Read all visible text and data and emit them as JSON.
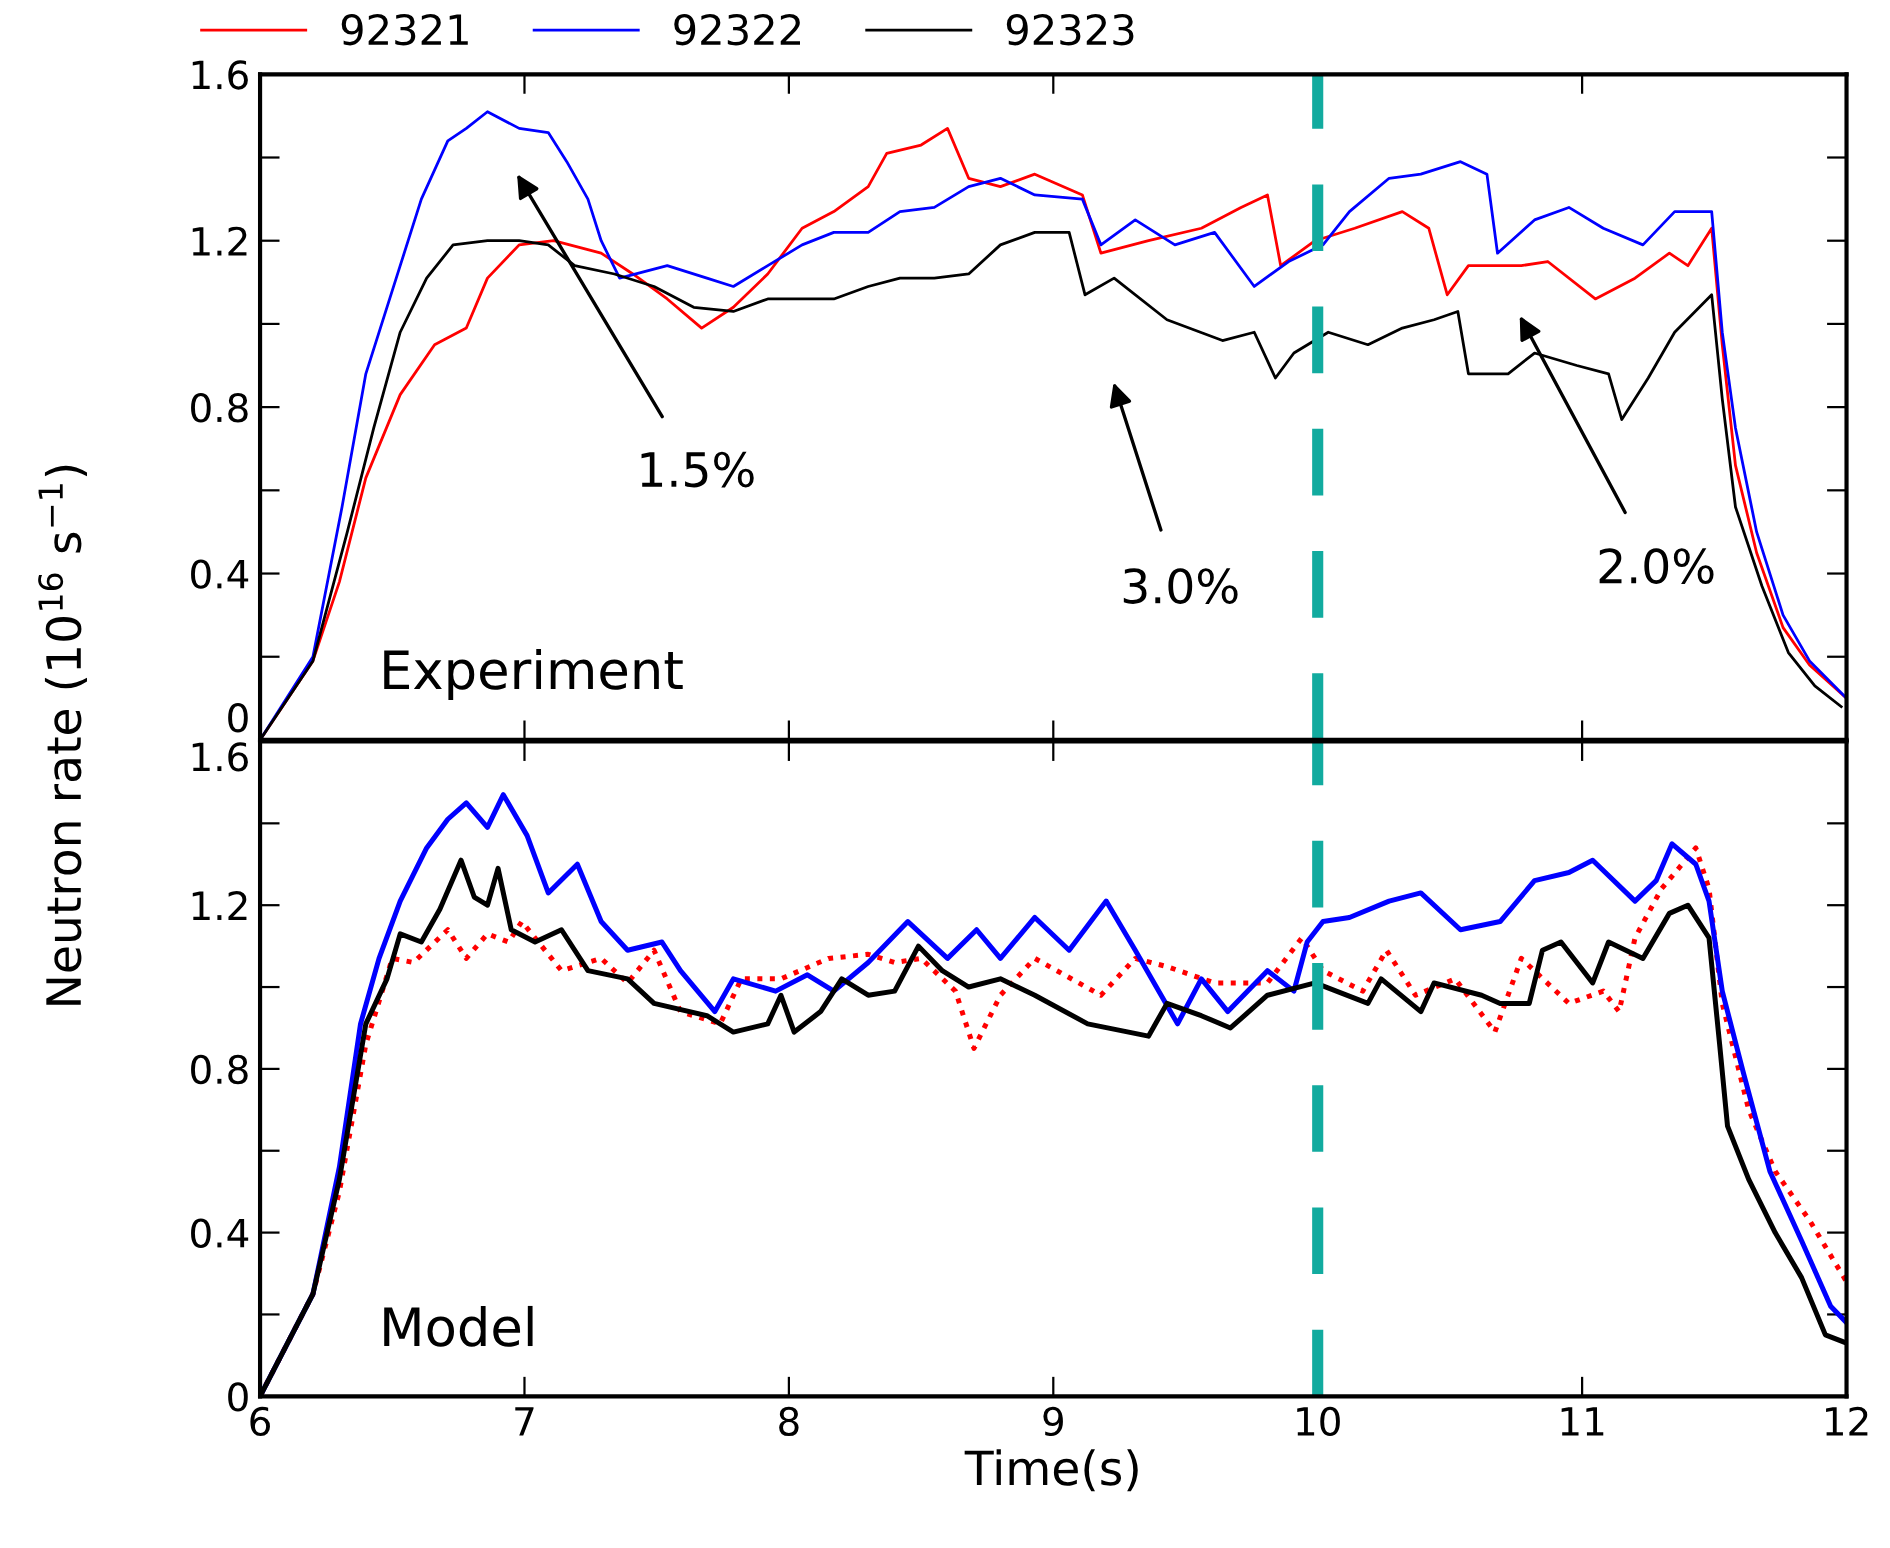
{
  "chart_data": [
    {
      "type": "line",
      "ylabel": "Neutron rate (10$^{16}$ s$^{−1}$)",
      "legend": "top",
      "tick_labels": "y",
      "grid": false,
      "marker": "none",
      "xlim": [
        6,
        12
      ],
      "xticks": [
        6,
        7,
        8,
        9,
        10,
        11,
        12
      ],
      "ylim": [
        0,
        1.6
      ],
      "yticks": [
        0,
        {
          "value": 0.2,
          "label": null
        },
        0.4,
        {
          "value": 0.6,
          "label": null
        },
        0.8,
        {
          "value": 1.0,
          "label": null
        },
        1.2,
        {
          "value": 1.4,
          "label": null
        },
        1.6
      ],
      "ref_lines": [
        {
          "axis": "x",
          "value": 10,
          "label": null,
          "color": "#12ab9f",
          "line_style": "dashed"
        }
      ],
      "annotations": [
        "Experiment",
        "1.5%",
        "3.0%",
        "2.0%"
      ],
      "series": [
        {
          "name": "92321",
          "color": "#ff0000",
          "line_style": "solid",
          "x": [
            6.0,
            6.2,
            6.3,
            6.4,
            6.53,
            6.66,
            6.78,
            6.86,
            6.98,
            7.11,
            7.29,
            7.41,
            7.54,
            7.67,
            7.79,
            7.92,
            8.05,
            8.17,
            8.3,
            8.37,
            8.5,
            8.6,
            8.68,
            8.8,
            8.93,
            9.11,
            9.18,
            9.36,
            9.56,
            9.71,
            9.81,
            9.86,
            9.99,
            10.14,
            10.32,
            10.42,
            10.49,
            10.57,
            10.77,
            10.87,
            11.05,
            11.2,
            11.33,
            11.4,
            11.49,
            11.53,
            11.58,
            11.66,
            11.76,
            11.86,
            12.0
          ],
          "values": [
            0.0,
            0.19,
            0.38,
            0.63,
            0.83,
            0.95,
            0.99,
            1.11,
            1.19,
            1.2,
            1.17,
            1.12,
            1.06,
            0.99,
            1.04,
            1.12,
            1.23,
            1.27,
            1.33,
            1.41,
            1.43,
            1.47,
            1.35,
            1.33,
            1.36,
            1.31,
            1.17,
            1.2,
            1.23,
            1.28,
            1.31,
            1.14,
            1.2,
            1.23,
            1.27,
            1.23,
            1.07,
            1.14,
            1.14,
            1.15,
            1.06,
            1.11,
            1.17,
            1.14,
            1.23,
            0.95,
            0.66,
            0.45,
            0.27,
            0.18,
            0.1
          ]
        },
        {
          "name": "92322",
          "color": "#0000ff",
          "line_style": "solid",
          "x": [
            6.0,
            6.2,
            6.31,
            6.4,
            6.53,
            6.61,
            6.71,
            6.78,
            6.86,
            6.98,
            7.09,
            7.16,
            7.24,
            7.29,
            7.36,
            7.54,
            7.69,
            7.79,
            7.92,
            8.05,
            8.17,
            8.3,
            8.42,
            8.55,
            8.68,
            8.8,
            8.93,
            9.11,
            9.18,
            9.31,
            9.46,
            9.61,
            9.76,
            9.89,
            10.02,
            10.12,
            10.27,
            10.39,
            10.54,
            10.64,
            10.68,
            10.82,
            10.95,
            11.08,
            11.23,
            11.35,
            11.49,
            11.53,
            11.58,
            11.66,
            11.76,
            11.86,
            12.0
          ],
          "values": [
            0.0,
            0.2,
            0.56,
            0.88,
            1.14,
            1.3,
            1.44,
            1.47,
            1.51,
            1.47,
            1.46,
            1.39,
            1.3,
            1.2,
            1.11,
            1.14,
            1.11,
            1.09,
            1.14,
            1.19,
            1.22,
            1.22,
            1.27,
            1.28,
            1.33,
            1.35,
            1.31,
            1.3,
            1.19,
            1.25,
            1.19,
            1.22,
            1.09,
            1.15,
            1.19,
            1.27,
            1.35,
            1.36,
            1.39,
            1.36,
            1.17,
            1.25,
            1.28,
            1.23,
            1.19,
            1.27,
            1.27,
            0.98,
            0.75,
            0.5,
            0.3,
            0.19,
            0.1
          ]
        },
        {
          "name": "92323",
          "color": "#000000",
          "line_style": "solid",
          "x": [
            6.0,
            6.2,
            6.33,
            6.43,
            6.53,
            6.63,
            6.73,
            6.86,
            6.98,
            7.09,
            7.19,
            7.34,
            7.49,
            7.64,
            7.79,
            7.92,
            8.05,
            8.17,
            8.3,
            8.42,
            8.55,
            8.68,
            8.8,
            8.93,
            9.06,
            9.12,
            9.23,
            9.43,
            9.64,
            9.76,
            9.84,
            9.91,
            10.04,
            10.19,
            10.32,
            10.44,
            10.53,
            10.57,
            10.72,
            10.82,
            10.98,
            11.1,
            11.15,
            11.25,
            11.35,
            11.49,
            11.53,
            11.58,
            11.68,
            11.78,
            11.88,
            11.98
          ],
          "values": [
            0.0,
            0.19,
            0.5,
            0.75,
            0.98,
            1.11,
            1.19,
            1.2,
            1.2,
            1.19,
            1.14,
            1.12,
            1.09,
            1.04,
            1.03,
            1.06,
            1.06,
            1.06,
            1.09,
            1.11,
            1.11,
            1.12,
            1.19,
            1.22,
            1.22,
            1.07,
            1.11,
            1.01,
            0.96,
            0.98,
            0.87,
            0.93,
            0.98,
            0.95,
            0.99,
            1.01,
            1.03,
            0.88,
            0.88,
            0.93,
            0.9,
            0.88,
            0.77,
            0.87,
            0.98,
            1.07,
            0.82,
            0.56,
            0.37,
            0.21,
            0.13,
            0.08
          ]
        }
      ]
    },
    {
      "type": "line",
      "xlabel": "Time(s)",
      "grid": false,
      "marker": "none",
      "xlim": [
        6,
        12
      ],
      "xticks": [
        6,
        7,
        8,
        9,
        10,
        11,
        12
      ],
      "ylim": [
        0,
        1.6
      ],
      "yticks": [
        0,
        {
          "value": 0.2,
          "label": null
        },
        0.4,
        {
          "value": 0.6,
          "label": null
        },
        0.8,
        {
          "value": 1.0,
          "label": null
        },
        1.2,
        {
          "value": 1.4,
          "label": null
        },
        1.6
      ],
      "ref_lines": [
        {
          "axis": "x",
          "value": 10,
          "label": null,
          "color": "#12ab9f",
          "line_style": "dashed"
        }
      ],
      "annotations": [
        "Model"
      ],
      "series": [
        {
          "color": "#ff0000",
          "line_style": "dotted",
          "x": [
            6.0,
            6.2,
            6.3,
            6.4,
            6.5,
            6.58,
            6.71,
            6.78,
            6.86,
            6.94,
            6.99,
            7.14,
            7.29,
            7.39,
            7.49,
            7.59,
            7.74,
            7.82,
            7.97,
            8.15,
            8.3,
            8.4,
            8.5,
            8.63,
            8.7,
            8.8,
            8.93,
            9.18,
            9.31,
            9.43,
            9.61,
            9.81,
            9.94,
            10.02,
            10.17,
            10.26,
            10.37,
            10.52,
            10.67,
            10.77,
            10.95,
            11.08,
            11.14,
            11.2,
            11.3,
            11.43,
            11.48,
            11.53,
            11.63,
            11.73,
            11.86,
            12.0
          ],
          "values": [
            0.0,
            0.25,
            0.5,
            0.86,
            1.07,
            1.06,
            1.14,
            1.07,
            1.13,
            1.11,
            1.16,
            1.04,
            1.07,
            1.01,
            1.09,
            0.94,
            0.91,
            1.02,
            1.02,
            1.07,
            1.08,
            1.06,
            1.07,
            0.99,
            0.85,
            0.98,
            1.07,
            0.98,
            1.07,
            1.05,
            1.01,
            1.01,
            1.12,
            1.04,
            0.99,
            1.09,
            0.98,
            1.02,
            0.89,
            1.07,
            0.96,
            0.99,
            0.94,
            1.12,
            1.24,
            1.34,
            1.24,
            0.96,
            0.7,
            0.55,
            0.43,
            0.28
          ]
        },
        {
          "color": "#0000ff",
          "line_style": "solid",
          "x": [
            6.0,
            6.2,
            6.3,
            6.38,
            6.45,
            6.53,
            6.63,
            6.71,
            6.78,
            6.86,
            6.92,
            7.01,
            7.09,
            7.2,
            7.29,
            7.39,
            7.52,
            7.59,
            7.72,
            7.79,
            7.95,
            8.07,
            8.17,
            8.3,
            8.45,
            8.6,
            8.71,
            8.8,
            8.93,
            9.06,
            9.2,
            9.31,
            9.47,
            9.56,
            9.66,
            9.81,
            9.91,
            9.96,
            10.02,
            10.12,
            10.27,
            10.39,
            10.54,
            10.69,
            10.82,
            10.95,
            11.04,
            11.2,
            11.28,
            11.34,
            11.43,
            11.48,
            11.53,
            11.61,
            11.71,
            11.83,
            11.94,
            12.0
          ],
          "values": [
            0.0,
            0.25,
            0.56,
            0.91,
            1.07,
            1.21,
            1.34,
            1.41,
            1.45,
            1.39,
            1.47,
            1.37,
            1.23,
            1.3,
            1.16,
            1.09,
            1.11,
            1.04,
            0.94,
            1.02,
            0.99,
            1.03,
            0.99,
            1.06,
            1.16,
            1.07,
            1.14,
            1.07,
            1.17,
            1.09,
            1.21,
            1.09,
            0.91,
            1.02,
            0.94,
            1.04,
            0.99,
            1.11,
            1.16,
            1.17,
            1.21,
            1.23,
            1.14,
            1.16,
            1.26,
            1.28,
            1.31,
            1.21,
            1.26,
            1.35,
            1.3,
            1.21,
            0.99,
            0.79,
            0.55,
            0.38,
            0.22,
            0.18
          ]
        },
        {
          "color": "#000000",
          "line_style": "solid",
          "x": [
            6.0,
            6.2,
            6.3,
            6.4,
            6.48,
            6.53,
            6.61,
            6.68,
            6.76,
            6.81,
            6.86,
            6.9,
            6.95,
            7.04,
            7.14,
            7.24,
            7.39,
            7.49,
            7.69,
            7.79,
            7.92,
            7.97,
            8.02,
            8.12,
            8.2,
            8.3,
            8.4,
            8.49,
            8.58,
            8.68,
            8.8,
            8.93,
            9.13,
            9.36,
            9.43,
            9.56,
            9.67,
            9.81,
            9.99,
            10.19,
            10.24,
            10.39,
            10.44,
            10.62,
            10.69,
            10.8,
            10.85,
            10.92,
            11.04,
            11.1,
            11.23,
            11.33,
            11.4,
            11.48,
            11.52,
            11.55,
            11.63,
            11.73,
            11.83,
            11.92,
            12.0
          ],
          "values": [
            0.0,
            0.25,
            0.53,
            0.91,
            1.02,
            1.13,
            1.11,
            1.19,
            1.31,
            1.22,
            1.2,
            1.29,
            1.14,
            1.11,
            1.14,
            1.04,
            1.02,
            0.96,
            0.93,
            0.89,
            0.91,
            0.98,
            0.89,
            0.94,
            1.02,
            0.98,
            0.99,
            1.1,
            1.04,
            1.0,
            1.02,
            0.98,
            0.91,
            0.88,
            0.96,
            0.93,
            0.9,
            0.98,
            1.01,
            0.96,
            1.02,
            0.94,
            1.01,
            0.98,
            0.96,
            0.96,
            1.09,
            1.11,
            1.01,
            1.11,
            1.07,
            1.18,
            1.2,
            1.12,
            0.86,
            0.66,
            0.53,
            0.4,
            0.29,
            0.15,
            0.13
          ]
        }
      ]
    }
  ]
}
